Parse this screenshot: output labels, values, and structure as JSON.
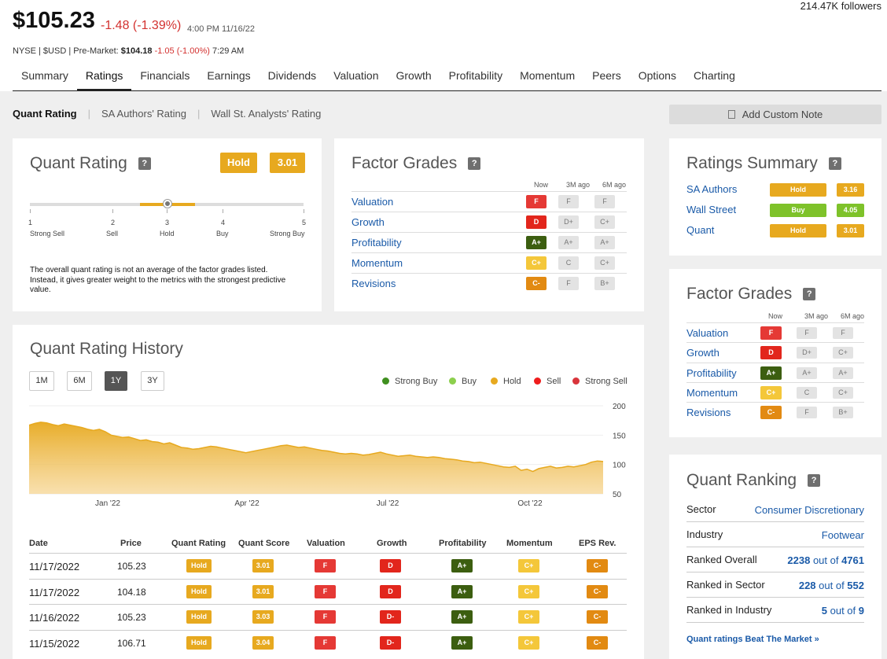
{
  "header": {
    "price": "$105.23",
    "change": "-1.48 (-1.39%)",
    "time": "4:00 PM 11/16/22",
    "followers": "214.47K followers",
    "exchange_prefix": "NYSE | $USD | Pre-Market:",
    "premarket_price": "$104.18",
    "premarket_change": "-1.05 (-1.00%)",
    "premarket_time": "7:29 AM"
  },
  "tabs": [
    "Summary",
    "Ratings",
    "Financials",
    "Earnings",
    "Dividends",
    "Valuation",
    "Growth",
    "Profitability",
    "Momentum",
    "Peers",
    "Options",
    "Charting"
  ],
  "subtabs": [
    "Quant Rating",
    "SA Authors' Rating",
    "Wall St. Analysts' Rating"
  ],
  "add_note": "Add Custom Note",
  "quant_rating": {
    "title": "Quant Rating",
    "help": "?",
    "rating": "Hold",
    "score": "3.01",
    "score_value": 3.01,
    "scale": [
      {
        "num": "1",
        "label": "Strong Sell"
      },
      {
        "num": "2",
        "label": "Sell"
      },
      {
        "num": "3",
        "label": "Hold"
      },
      {
        "num": "4",
        "label": "Buy"
      },
      {
        "num": "5",
        "label": "Strong Buy"
      }
    ],
    "note": "The overall quant rating is not an average of the factor grades listed. Instead, it gives greater weight to the metrics with the strongest predictive value."
  },
  "factor_grades": {
    "title": "Factor Grades",
    "help": "?",
    "cols": [
      "Now",
      "3M ago",
      "6M ago"
    ],
    "rows": [
      {
        "name": "Valuation",
        "now": "F",
        "m3": "F",
        "m6": "F",
        "cls": "b-F"
      },
      {
        "name": "Growth",
        "now": "D",
        "m3": "D+",
        "m6": "C+",
        "cls": "b-D"
      },
      {
        "name": "Profitability",
        "now": "A+",
        "m3": "A+",
        "m6": "A+",
        "cls": "b-Ap"
      },
      {
        "name": "Momentum",
        "now": "C+",
        "m3": "C",
        "m6": "C+",
        "cls": "b-Cp"
      },
      {
        "name": "Revisions",
        "now": "C-",
        "m3": "F",
        "m6": "B+",
        "cls": "b-Cm"
      }
    ]
  },
  "ratings_summary": {
    "title": "Ratings Summary",
    "help": "?",
    "rows": [
      {
        "name": "SA Authors",
        "rating": "Hold",
        "score": "3.16",
        "cls": "b-hold"
      },
      {
        "name": "Wall Street",
        "rating": "Buy",
        "score": "4.05",
        "cls": "b-buy"
      },
      {
        "name": "Quant",
        "rating": "Hold",
        "score": "3.01",
        "cls": "b-hold"
      }
    ]
  },
  "quant_ranking": {
    "title": "Quant Ranking",
    "help": "?",
    "rows": [
      {
        "label": "Sector",
        "value": "Consumer Discretionary",
        "bold": "",
        "rest": ""
      },
      {
        "label": "Industry",
        "value": "Footwear",
        "bold": "",
        "rest": ""
      },
      {
        "label": "Ranked Overall",
        "value": "",
        "bold": "2238",
        "rest": " out of ",
        "bold2": "4761"
      },
      {
        "label": "Ranked in Sector",
        "value": "",
        "bold": "228",
        "rest": " out of ",
        "bold2": "552"
      },
      {
        "label": "Ranked in Industry",
        "value": "",
        "bold": "5",
        "rest": " out of ",
        "bold2": "9"
      }
    ],
    "link": "Quant ratings Beat The Market »"
  },
  "history": {
    "title": "Quant Rating History",
    "ranges": [
      "1M",
      "6M",
      "1Y",
      "3Y"
    ],
    "active_range": "1Y",
    "legend": [
      {
        "label": "Strong Buy",
        "color": "#3f8f1f"
      },
      {
        "label": "Buy",
        "color": "#8ccf4d"
      },
      {
        "label": "Hold",
        "color": "#e7a91f"
      },
      {
        "label": "Sell",
        "color": "#ef1c1c"
      },
      {
        "label": "Strong Sell",
        "color": "#d9343b"
      }
    ],
    "columns": [
      "Date",
      "Price",
      "Quant Rating",
      "Quant Score",
      "Valuation",
      "Growth",
      "Profitability",
      "Momentum",
      "EPS Rev."
    ],
    "rows": [
      {
        "date": "11/17/2022",
        "price": "105.23",
        "rating": "Hold",
        "score": "3.01",
        "val": "F",
        "growth": "D",
        "prof": "A+",
        "mom": "C+",
        "eps": "C-"
      },
      {
        "date": "11/17/2022",
        "price": "104.18",
        "rating": "Hold",
        "score": "3.01",
        "val": "F",
        "growth": "D",
        "prof": "A+",
        "mom": "C+",
        "eps": "C-"
      },
      {
        "date": "11/16/2022",
        "price": "105.23",
        "rating": "Hold",
        "score": "3.03",
        "val": "F",
        "growth": "D-",
        "prof": "A+",
        "mom": "C+",
        "eps": "C-"
      },
      {
        "date": "11/15/2022",
        "price": "106.71",
        "rating": "Hold",
        "score": "3.04",
        "val": "F",
        "growth": "D-",
        "prof": "A+",
        "mom": "C+",
        "eps": "C-"
      }
    ]
  },
  "chart_data": {
    "type": "area",
    "x_ticks": [
      "Jan '22",
      "Apr '22",
      "Jul '22",
      "Oct '22"
    ],
    "y_ticks": [
      "200",
      "150",
      "100",
      "50"
    ],
    "ylim": [
      50,
      200
    ],
    "color": "#e7a91f",
    "values": [
      167,
      170,
      172,
      171,
      168,
      166,
      169,
      167,
      165,
      163,
      160,
      158,
      160,
      156,
      150,
      148,
      146,
      147,
      144,
      141,
      142,
      139,
      138,
      135,
      137,
      133,
      129,
      128,
      126,
      127,
      129,
      131,
      130,
      128,
      126,
      124,
      122,
      120,
      122,
      124,
      126,
      128,
      130,
      132,
      133,
      131,
      129,
      130,
      128,
      126,
      124,
      123,
      121,
      119,
      118,
      119,
      118,
      116,
      117,
      119,
      121,
      118,
      116,
      114,
      115,
      116,
      114,
      113,
      112,
      113,
      112,
      110,
      109,
      108,
      106,
      105,
      103,
      104,
      102,
      100,
      98,
      96,
      95,
      97,
      90,
      92,
      88,
      93,
      95,
      97,
      94,
      95,
      97,
      96,
      98,
      100,
      104,
      106,
      105
    ]
  }
}
